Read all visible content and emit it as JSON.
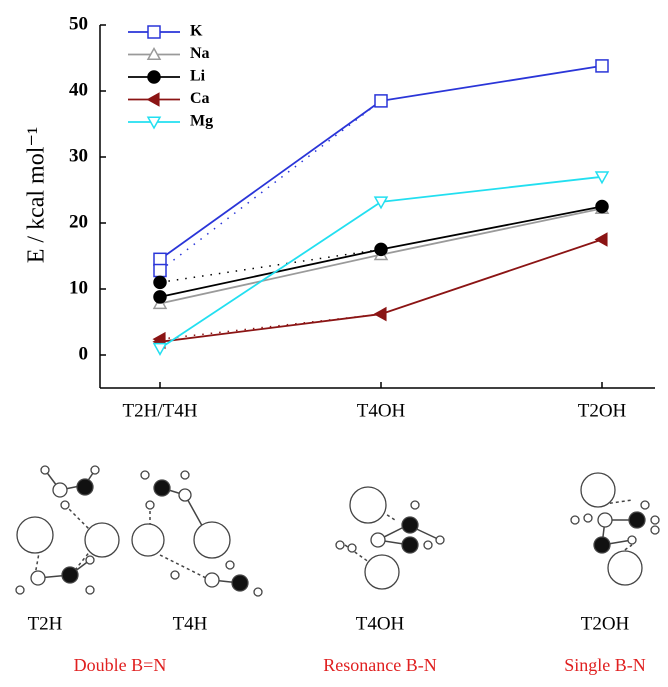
{
  "chart_data": {
    "type": "line",
    "y_label": "E / kcal mol⁻¹",
    "categories": [
      "T2H/T4H",
      "T4OH",
      "T2OH"
    ],
    "ylim": [
      -5,
      50
    ],
    "yticks": [
      0,
      10,
      20,
      30,
      40,
      50
    ],
    "series": [
      {
        "name": "K",
        "color": "#2a35d8",
        "marker": "square",
        "values": [
          14.5,
          38.5,
          43.8
        ],
        "values_alt": [
          12.8
        ]
      },
      {
        "name": "Na",
        "color": "#9a9a9a",
        "marker": "triangle-up",
        "values": [
          7.8,
          15.2,
          22.2
        ],
        "values_alt": [
          null
        ]
      },
      {
        "name": "Li",
        "color": "#000000",
        "marker": "circle",
        "values": [
          8.8,
          16.0,
          22.5
        ],
        "values_alt": [
          11.0
        ]
      },
      {
        "name": "Ca",
        "color": "#8b1414",
        "marker": "triangle-left",
        "values": [
          2.0,
          6.2,
          17.5
        ],
        "values_alt": [
          2.4
        ]
      },
      {
        "name": "Mg",
        "color": "#22dff0",
        "marker": "triangle-down",
        "values": [
          1.0,
          23.2,
          27.0
        ],
        "values_alt": [
          null
        ]
      }
    ]
  },
  "structure_labels": [
    "T2H",
    "T4H",
    "T4OH",
    "T2OH"
  ],
  "bond_types": [
    "Double B=N",
    "Resonance B-N",
    "Single B-N"
  ]
}
